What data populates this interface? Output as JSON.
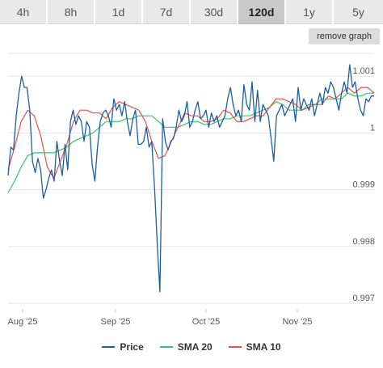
{
  "tabs": [
    {
      "label": "4h",
      "active": false
    },
    {
      "label": "8h",
      "active": false
    },
    {
      "label": "1d",
      "active": false
    },
    {
      "label": "7d",
      "active": false
    },
    {
      "label": "30d",
      "active": false
    },
    {
      "label": "120d",
      "active": true
    },
    {
      "label": "1y",
      "active": false
    },
    {
      "label": "5y",
      "active": false
    }
  ],
  "remove_graph_label": "remove graph",
  "colors": {
    "price": "#1f5e9c",
    "sma20": "#36c46e",
    "sma10": "#e8504b",
    "grid": "#e6e6e6"
  },
  "chart_data": {
    "type": "line",
    "x_tick_labels": [
      "Aug '25",
      "Sep '25",
      "Oct '25",
      "Nov '25"
    ],
    "y_tick_labels": [
      "1.001",
      "1",
      "0.999",
      "0.998",
      "0.997"
    ],
    "ylim": [
      0.9969,
      1.0014
    ],
    "grid": true,
    "legend": "bottom",
    "series": [
      {
        "name": "Price",
        "color": "#1f5e9c",
        "values": [
          0.99925,
          0.99975,
          0.9997,
          1.0003,
          1.0007,
          1.001,
          1.0008,
          1.0008,
          1.0004,
          0.9995,
          0.9993,
          0.99955,
          0.99935,
          0.99885,
          0.999,
          0.9992,
          0.99935,
          0.99915,
          0.99985,
          0.9995,
          0.99925,
          0.9998,
          0.99935,
          1.0002,
          1.0004,
          1.00015,
          1.0003,
          1.0002,
          0.99985,
          1.0002,
          1.0001,
          0.99945,
          0.99915,
          0.99975,
          1.0002,
          1.00035,
          1.0004,
          1.0003,
          1.0001,
          1.0006,
          1.0004,
          1.0005,
          1.0003,
          1.00055,
          1.0002,
          0.99995,
          1.00025,
          1.0004,
          0.9998,
          0.9998,
          0.99985,
          1.0001,
          0.99975,
          0.99985,
          0.99905,
          0.99805,
          0.9972,
          1.00025,
          0.99985,
          0.9997,
          0.99985,
          0.9999,
          1.0001,
          1.0004,
          1.0002,
          1.0003,
          1.00055,
          1.0001,
          1.0002,
          1.0004,
          1.00055,
          1.00025,
          1.0003,
          1.0004,
          1.0001,
          1.00035,
          1.0002,
          1.0003,
          1.0001,
          1.0002,
          1.0003,
          1.0006,
          1.0008,
          1.0005,
          1.0003,
          1.0004,
          1.0002,
          1.00085,
          1.0005,
          1.0004,
          1.0009,
          1.0002,
          1.00075,
          1.0002,
          1.0005,
          1.0004,
          1.0003,
          0.9999,
          0.9995,
          1.0003,
          1.0004,
          1.0005,
          1.0003,
          1.0004,
          1.0005,
          1.0006,
          1.0002,
          1.0008,
          1.0004,
          1.0006,
          1.0005,
          1.0004,
          1.0006,
          1.0003,
          1.0005,
          1.0007,
          1.0005,
          1.0008,
          1.0007,
          1.0009,
          1.0008,
          1.0006,
          1.0004,
          1.0007,
          1.0009,
          1.0007,
          1.0012,
          1.0008,
          1.0009,
          1.0006,
          1.0004,
          1.0003,
          1.0006,
          1.00055,
          1.00065,
          1.00065
        ]
      },
      {
        "name": "SMA 20",
        "color": "#36c46e",
        "values": [
          0.99895,
          0.99915,
          0.9994,
          0.9996,
          0.99965,
          0.99965,
          0.99965,
          0.99965,
          0.9997,
          0.99975,
          0.99985,
          0.9999,
          0.99995,
          1.0,
          1.0001,
          1.0002,
          1.0002,
          1.0002,
          1.00025,
          1.00025,
          1.0003,
          1.0003,
          1.0003,
          1.0002,
          1.0001,
          1.0001,
          1.0001,
          1.00015,
          1.0002,
          1.0002,
          1.00015,
          1.00015,
          1.0002,
          1.00025,
          1.00025,
          1.0003,
          1.0003,
          1.0003,
          1.00035,
          1.0004,
          1.00045,
          1.00055,
          1.0005,
          1.0004,
          1.0004,
          1.0004,
          1.0005,
          1.0005,
          1.0006,
          1.0006,
          1.0006,
          1.0006,
          1.0007,
          1.00065,
          1.00065,
          1.0007,
          1.0007
        ]
      },
      {
        "name": "SMA 10",
        "color": "#e8504b",
        "values": [
          0.99935,
          0.99975,
          1.0002,
          1.0004,
          1.0003,
          0.99995,
          0.9994,
          0.9992,
          0.9995,
          0.9998,
          1.0002,
          1.0004,
          1.0004,
          1.00035,
          1.00035,
          1.00025,
          1.00045,
          1.00055,
          1.0005,
          1.00045,
          1.0004,
          1.0002,
          0.99985,
          0.99955,
          0.9996,
          0.99985,
          1.0001,
          1.00035,
          1.0003,
          1.0003,
          1.0002,
          1.0002,
          1.00025,
          1.0004,
          1.00035,
          1.0002,
          1.0002,
          1.00025,
          1.0003,
          1.0003,
          1.00045,
          1.0006,
          1.0006,
          1.00055,
          1.0005,
          1.0004,
          1.00045,
          1.0005,
          1.0005,
          1.00065,
          1.0006,
          1.0007,
          1.0008,
          1.0007,
          1.0008,
          1.0008,
          1.0007
        ]
      }
    ]
  }
}
